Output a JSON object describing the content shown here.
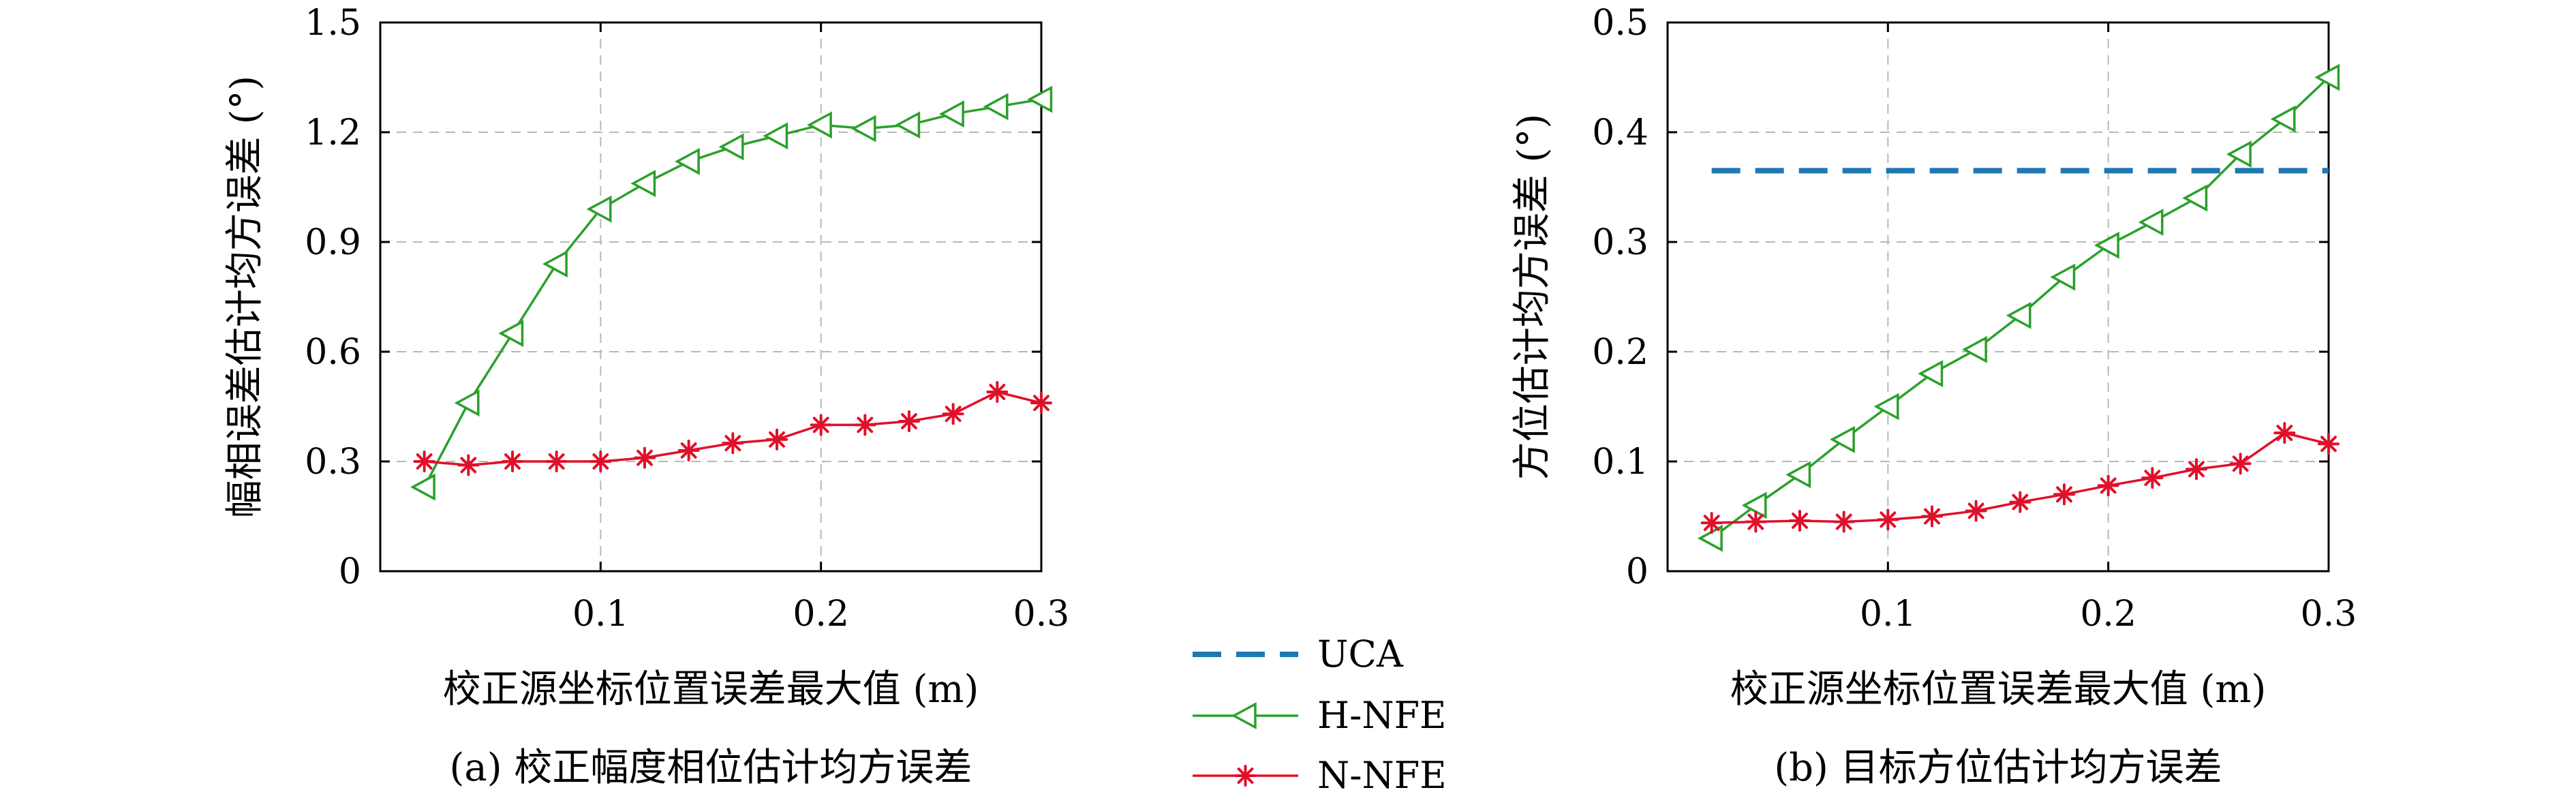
{
  "legend": {
    "entries": [
      {
        "key": "UCA",
        "label": "UCA",
        "color": "#1f77b4",
        "marker": "dash-line"
      },
      {
        "key": "H-NFE",
        "label": "H-NFE",
        "color": "#2ca02c",
        "marker": "triangle-left-icon"
      },
      {
        "key": "N-NFE",
        "label": "N-NFE",
        "color": "#e0102a",
        "marker": "asterisk-icon"
      }
    ],
    "placement": "bottom-center"
  },
  "chart_data": [
    {
      "type": "line",
      "caption": "(a) 校正幅度相位估计均方误差",
      "title": "",
      "xlabel": "校正源坐标位置误差最大值 (m)",
      "ylabel": "幅相误差估计均方误差 (°)",
      "xlim": [
        0,
        0.3
      ],
      "ylim": [
        0,
        1.5
      ],
      "xticks": [
        0.1,
        0.2,
        0.3
      ],
      "xtick_labels": [
        "0.1",
        "0.2",
        "0.3"
      ],
      "yticks": [
        0,
        0.3,
        0.6,
        0.9,
        1.2,
        1.5
      ],
      "ytick_labels": [
        "0",
        "0.3",
        "0.6",
        "0.9",
        "1.2",
        "1.5"
      ],
      "grid": true,
      "x": [
        0.02,
        0.04,
        0.06,
        0.08,
        0.1,
        0.12,
        0.14,
        0.16,
        0.18,
        0.2,
        0.22,
        0.24,
        0.26,
        0.28,
        0.3
      ],
      "series": [
        {
          "name": "H-NFE",
          "color": "#2ca02c",
          "marker": "triangle-left",
          "values": [
            0.23,
            0.46,
            0.65,
            0.84,
            0.99,
            1.06,
            1.12,
            1.16,
            1.19,
            1.22,
            1.21,
            1.22,
            1.25,
            1.27,
            1.29
          ]
        },
        {
          "name": "N-NFE",
          "color": "#e0102a",
          "marker": "asterisk",
          "values": [
            0.3,
            0.29,
            0.3,
            0.3,
            0.3,
            0.31,
            0.33,
            0.35,
            0.36,
            0.4,
            0.4,
            0.41,
            0.43,
            0.49,
            0.46
          ]
        }
      ]
    },
    {
      "type": "line",
      "caption": "(b) 目标方位估计均方误差",
      "title": "",
      "xlabel": "校正源坐标位置误差最大值 (m)",
      "ylabel": "方位估计均方误差 (°)",
      "xlim": [
        0,
        0.3
      ],
      "ylim": [
        0,
        0.5
      ],
      "xticks": [
        0.1,
        0.2,
        0.3
      ],
      "xtick_labels": [
        "0.1",
        "0.2",
        "0.3"
      ],
      "yticks": [
        0,
        0.1,
        0.2,
        0.3,
        0.4,
        0.5
      ],
      "ytick_labels": [
        "0",
        "0.1",
        "0.2",
        "0.3",
        "0.4",
        "0.5"
      ],
      "grid": true,
      "x": [
        0.02,
        0.04,
        0.06,
        0.08,
        0.1,
        0.12,
        0.14,
        0.16,
        0.18,
        0.2,
        0.22,
        0.24,
        0.26,
        0.28,
        0.3
      ],
      "series": [
        {
          "name": "UCA",
          "color": "#1f77b4",
          "marker": "none",
          "dashed": true,
          "values": [
            0.365,
            0.365,
            0.365,
            0.365,
            0.365,
            0.365,
            0.365,
            0.365,
            0.365,
            0.365,
            0.365,
            0.365,
            0.365,
            0.365,
            0.365
          ]
        },
        {
          "name": "H-NFE",
          "color": "#2ca02c",
          "marker": "triangle-left",
          "values": [
            0.03,
            0.06,
            0.088,
            0.12,
            0.15,
            0.18,
            0.202,
            0.233,
            0.268,
            0.297,
            0.318,
            0.34,
            0.38,
            0.412,
            0.45
          ]
        },
        {
          "name": "N-NFE",
          "color": "#e0102a",
          "marker": "asterisk",
          "values": [
            0.044,
            0.045,
            0.046,
            0.045,
            0.047,
            0.05,
            0.055,
            0.063,
            0.07,
            0.078,
            0.085,
            0.093,
            0.098,
            0.126,
            0.116
          ]
        }
      ]
    }
  ]
}
